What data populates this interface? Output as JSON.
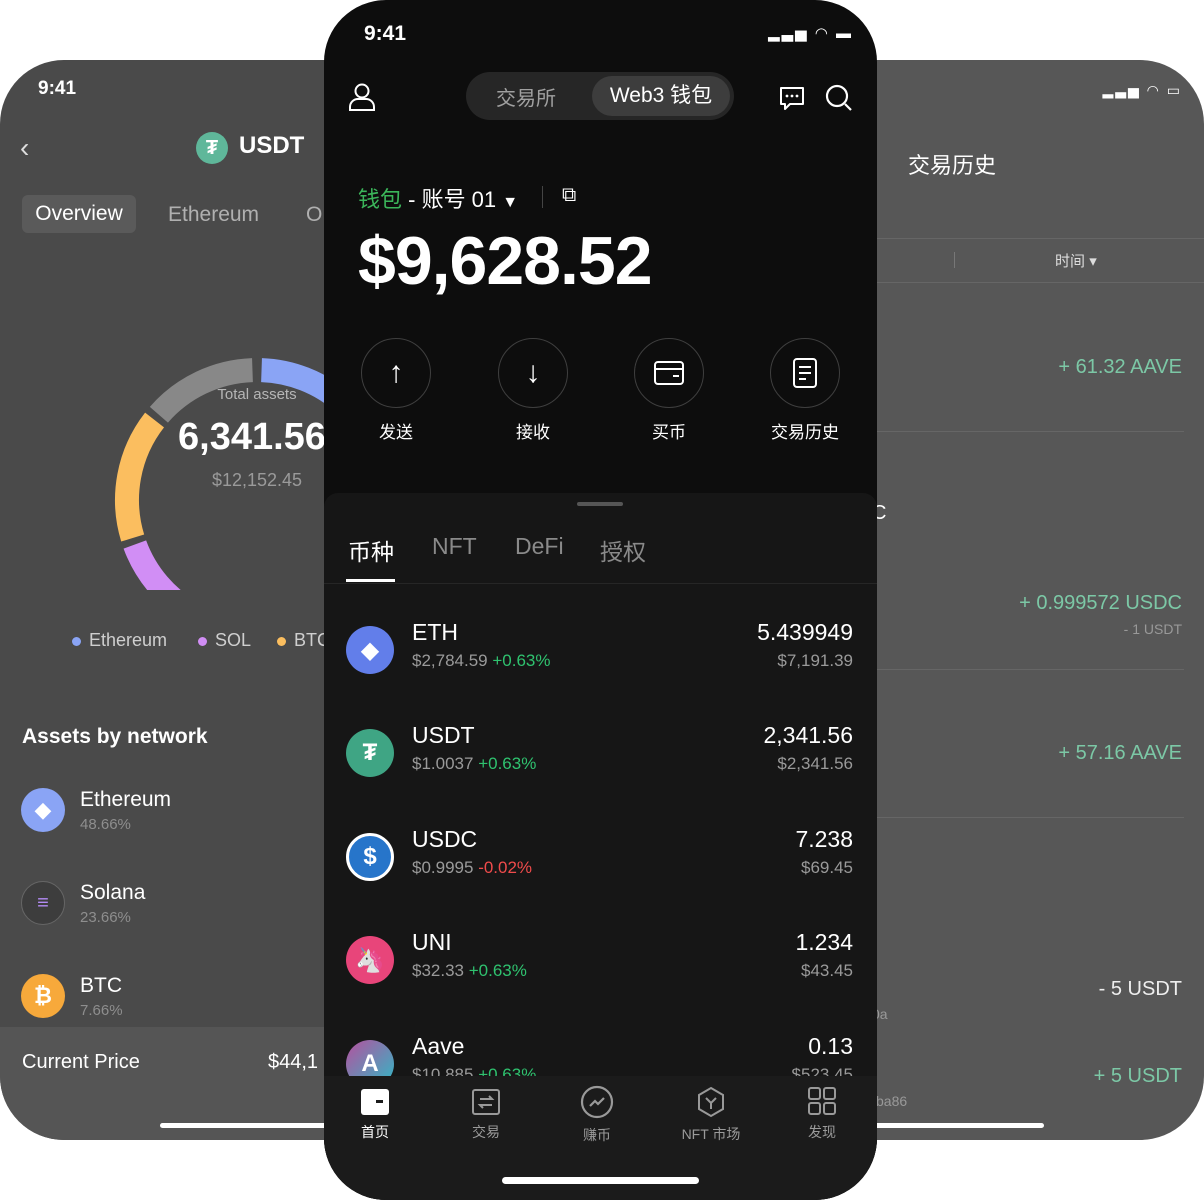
{
  "left_phone": {
    "time": "9:41",
    "title": "USDT",
    "tabs": [
      "Overview",
      "Ethereum",
      "O"
    ],
    "donut": {
      "label": "Total assets",
      "value": "6,341.56",
      "usd": "$12,152.45"
    },
    "legend": [
      {
        "name": "Ethereum",
        "color": "#8aa4f5"
      },
      {
        "name": "SOL",
        "color": "#d18ef5"
      },
      {
        "name": "BTC",
        "color": "#fbbe5f"
      }
    ],
    "section_title": "Assets by network",
    "networks": [
      {
        "name": "Ethereum",
        "pct": "48.66%"
      },
      {
        "name": "Solana",
        "pct": "23.66%"
      },
      {
        "name": "BTC",
        "pct": "7.66%"
      }
    ],
    "footer": {
      "label": "Current Price",
      "value": "$44,1"
    }
  },
  "right_phone": {
    "title": "交易历史",
    "filter_label": "时间",
    "rows": [
      {
        "amount": "+ 61.32 AAVE",
        "sub": ""
      },
      {
        "amount": "+ 0.999572 USDC",
        "sub": "- 1 USDT"
      },
      {
        "amount": "+ 57.16 AAVE",
        "sub": ""
      },
      {
        "amount": "- 5 USDT",
        "sub": ""
      },
      {
        "amount": "+ 5 USDT",
        "sub": ""
      }
    ],
    "fragments": [
      "C",
      "0a",
      "ba86"
    ]
  },
  "center_phone": {
    "time": "9:41",
    "segment": {
      "left": "交易所",
      "right": "Web3 钱包"
    },
    "wallet": {
      "label": "钱包",
      "account": " - 账号 01",
      "balance": "$9,628.52"
    },
    "actions": [
      {
        "label": "发送"
      },
      {
        "label": "接收"
      },
      {
        "label": "买币"
      },
      {
        "label": "交易历史"
      }
    ],
    "tabs": [
      "币种",
      "NFT",
      "DeFi",
      "授权"
    ],
    "assets": [
      {
        "symbol": "ETH",
        "price": "$2,784.59",
        "change": "+0.63%",
        "amount": "5.439949",
        "value": "$7,191.39",
        "dir": "up"
      },
      {
        "symbol": "USDT",
        "price": "$1.0037",
        "change": "+0.63%",
        "amount": "2,341.56",
        "value": "$2,341.56",
        "dir": "up"
      },
      {
        "symbol": "USDC",
        "price": "$0.9995",
        "change": "-0.02%",
        "amount": "7.238",
        "value": "$69.45",
        "dir": "down"
      },
      {
        "symbol": "UNI",
        "price": "$32.33",
        "change": "+0.63%",
        "amount": "1.234",
        "value": "$43.45",
        "dir": "up"
      },
      {
        "symbol": "Aave",
        "price": "$10.885",
        "change": "+0.63%",
        "amount": "0.13",
        "value": "$523.45",
        "dir": "up"
      }
    ],
    "nav": [
      "首页",
      "交易",
      "赚币",
      "NFT 市场",
      "发现"
    ]
  }
}
